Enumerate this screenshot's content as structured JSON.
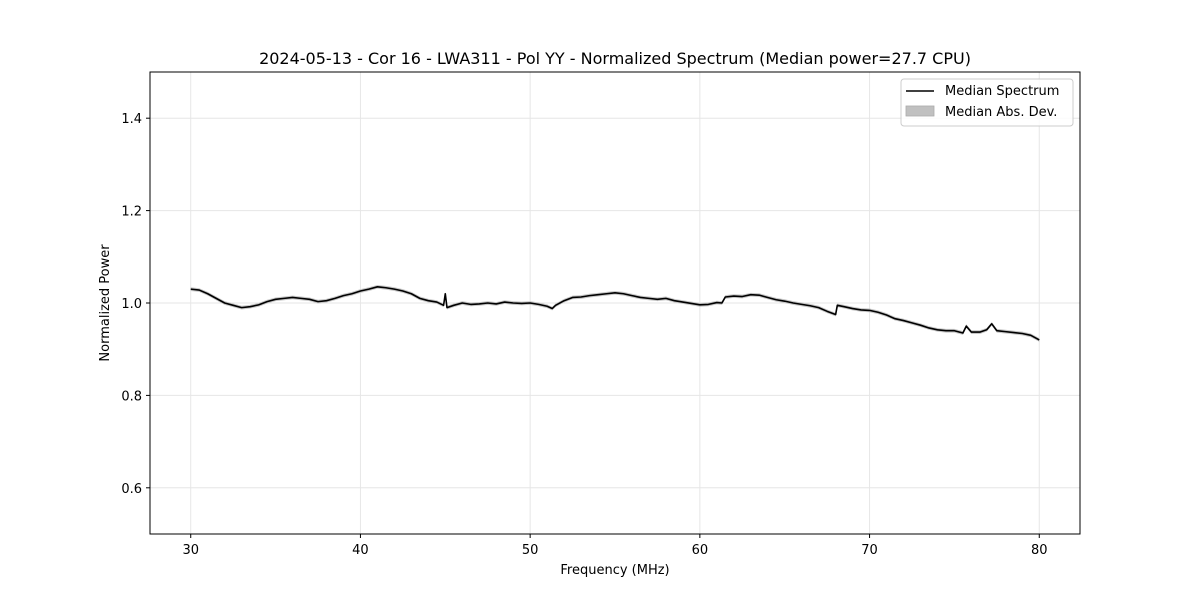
{
  "chart_data": {
    "type": "line",
    "title": "2024-05-13 - Cor 16 - LWA311 - Pol YY - Normalized Spectrum (Median power=27.7 CPU)",
    "xlabel": "Frequency (MHz)",
    "ylabel": "Normalized Power",
    "xlim": [
      27.6,
      82.4
    ],
    "ylim": [
      0.5,
      1.5
    ],
    "xticks": [
      30,
      40,
      50,
      60,
      70,
      80
    ],
    "yticks": [
      0.6,
      0.8,
      1.0,
      1.2,
      1.4
    ],
    "xtick_labels": [
      "30",
      "40",
      "50",
      "60",
      "70",
      "80"
    ],
    "ytick_labels": [
      "0.6",
      "0.8",
      "1.0",
      "1.2",
      "1.4"
    ],
    "grid": true,
    "legend_position": "top-right",
    "series": [
      {
        "name": "Median Spectrum",
        "color": "#000000",
        "x": [
          30,
          30.5,
          31,
          31.5,
          32,
          32.5,
          33,
          33.5,
          34,
          34.5,
          35,
          35.5,
          36,
          36.5,
          37,
          37.5,
          38,
          38.5,
          39,
          39.5,
          40,
          40.5,
          41,
          41.5,
          42,
          42.5,
          43,
          43.5,
          44,
          44.5,
          44.9,
          45.0,
          45.1,
          45.5,
          46,
          46.5,
          47,
          47.5,
          48,
          48.5,
          49,
          49.5,
          50,
          50.5,
          51,
          51.3,
          51.5,
          52,
          52.5,
          53,
          53.5,
          54,
          54.5,
          55,
          55.5,
          56,
          56.5,
          57,
          57.5,
          58,
          58.5,
          59,
          59.5,
          60,
          60.5,
          61,
          61.3,
          61.5,
          62,
          62.5,
          63,
          63.5,
          64,
          64.5,
          65,
          65.5,
          66,
          66.5,
          67,
          67.5,
          68,
          68.1,
          68.5,
          69,
          69.5,
          70,
          70.5,
          71,
          71.5,
          72,
          72.5,
          73,
          73.5,
          74,
          74.5,
          75,
          75.5,
          75.7,
          76,
          76.5,
          76.9,
          77.2,
          77.5,
          78,
          78.5,
          79,
          79.5,
          80
        ],
        "values": [
          1.03,
          1.028,
          1.02,
          1.01,
          1.0,
          0.995,
          0.99,
          0.992,
          0.996,
          1.003,
          1.008,
          1.01,
          1.012,
          1.01,
          1.008,
          1.003,
          1.005,
          1.01,
          1.016,
          1.02,
          1.026,
          1.03,
          1.035,
          1.033,
          1.03,
          1.026,
          1.02,
          1.01,
          1.005,
          1.002,
          0.995,
          1.02,
          0.99,
          0.995,
          1.0,
          0.997,
          0.998,
          1.0,
          0.998,
          1.002,
          1.0,
          0.999,
          1.0,
          0.997,
          0.993,
          0.988,
          0.995,
          1.005,
          1.012,
          1.013,
          1.016,
          1.018,
          1.02,
          1.022,
          1.02,
          1.016,
          1.012,
          1.01,
          1.008,
          1.01,
          1.005,
          1.002,
          0.999,
          0.996,
          0.997,
          1.001,
          1.0,
          1.013,
          1.015,
          1.014,
          1.018,
          1.017,
          1.012,
          1.007,
          1.004,
          1.0,
          0.997,
          0.994,
          0.99,
          0.982,
          0.975,
          0.995,
          0.992,
          0.988,
          0.985,
          0.984,
          0.98,
          0.974,
          0.966,
          0.962,
          0.957,
          0.952,
          0.946,
          0.942,
          0.94,
          0.94,
          0.935,
          0.95,
          0.937,
          0.937,
          0.942,
          0.955,
          0.94,
          0.938,
          0.936,
          0.934,
          0.93,
          0.92
        ]
      },
      {
        "name": "Median Abs. Dev.",
        "color": "#c0c0c0",
        "band_halfwidth": 0.004
      }
    ]
  }
}
